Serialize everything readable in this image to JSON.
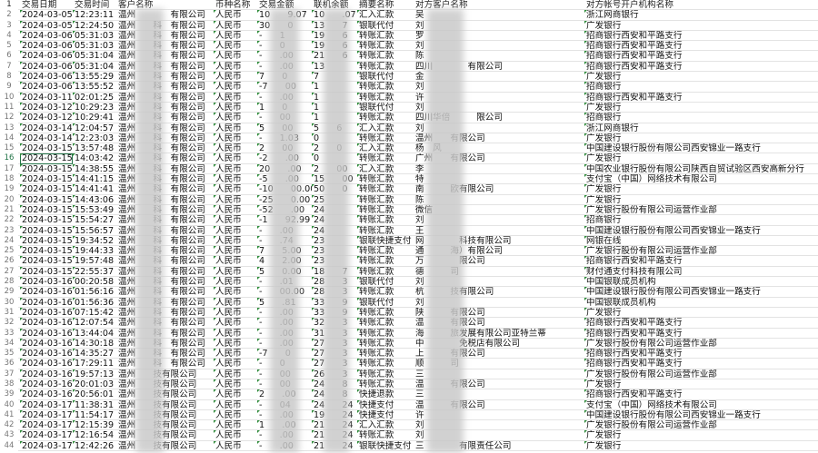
{
  "headers": [
    "交易日期",
    "交易时间",
    "客户名称",
    "币种名称",
    "交易金额",
    "联机余额",
    "摘要名称",
    "对方客户名称",
    "对方帐号开户机构名称"
  ],
  "header_row_number": "1",
  "selected_row": "16",
  "colors": {
    "grid": "#e3e3e3",
    "marker": "#2e8b3a",
    "selection": "#217346"
  },
  "rows": [
    [
      "2",
      "2024-03-05",
      "12:23:11",
      "温州　　　　有限公司",
      "人民币",
      "10　　9.07",
      "10　　.07",
      "汇入汇款",
      "吴",
      "浙江网商银行"
    ],
    [
      "3",
      "2024-03-05",
      "12:24:50",
      "温州　　科　有限公司",
      "人民币",
      "30　　0",
      "13　　7",
      "银联代付",
      "刘",
      "广发银行"
    ],
    [
      "4",
      "2024-03-06",
      "05:31:03",
      "温州　　科　有限公司",
      "人民币",
      "-　　1",
      "19　　6",
      "转账汇款",
      "罗",
      "招商银行西安和平路支行"
    ],
    [
      "5",
      "2024-03-06",
      "05:31:03",
      "温州　　科　有限公司",
      "人民币",
      "-　　0",
      "19　　6",
      "转账汇款",
      "刘",
      "招商银行西安和平路支行"
    ],
    [
      "6",
      "2024-03-06",
      "05:31:04",
      "温州　　科　有限公司",
      "人民币",
      "-　　.00",
      "21　　6",
      "转账汇款",
      "陈",
      "招商银行西安和平路支行"
    ],
    [
      "7",
      "2024-03-06",
      "05:31:04",
      "温州　　科　有限公司",
      "人民币",
      "-　　.00",
      "13",
      "转账汇款",
      "四川　　　　有限公司",
      "招商银行西安和平路支行"
    ],
    [
      "8",
      "2024-03-06",
      "13:55:29",
      "温州　　科　有限公司",
      "人民币",
      "7　　0",
      "7",
      "银联代付",
      "金",
      "广发银行"
    ],
    [
      "9",
      "2024-03-06",
      "13:55:52",
      "温州　　科　有限公司",
      "人民币",
      "-7　　00",
      "1",
      "转账汇款",
      "刘",
      "招商银行"
    ],
    [
      "10",
      "2024-03-11",
      "02:01:25",
      "温州　　科　有限公司",
      "人民币",
      "-　　.00",
      "1",
      "转账汇款",
      "许",
      "招商银行西安和平路支行"
    ],
    [
      "11",
      "2024-03-12",
      "10:29:23",
      "温州　　科　有限公司",
      "人民币",
      "1　　0",
      "1",
      "银联代付",
      "刘",
      "广发银行"
    ],
    [
      "12",
      "2024-03-12",
      "10:29:41",
      "温州　　科　有限公司",
      "人民币",
      "-　　00",
      "1",
      "转账汇款",
      "四川华倍　　　限公司",
      "招商银行"
    ],
    [
      "13",
      "2024-03-14",
      "12:04:57",
      "温州　　科　有限公司",
      "人民币",
      "5　　00",
      "5　　6",
      "汇入汇款",
      "刘",
      "浙江网商银行"
    ],
    [
      "14",
      "2024-03-14",
      "12:23:03",
      "温州　　科　有限公司",
      "人民币",
      "-　　1.03",
      "0",
      "转账汇款",
      "温州　　有限公司",
      "广发银行"
    ],
    [
      "15",
      "2024-03-15",
      "13:57:48",
      "温州　　科　有限公司",
      "人民币",
      "2　　00",
      "2　　0",
      "汇入汇款",
      "杨　风",
      "中国建设银行股份有限公司西安锦业一路支行"
    ],
    [
      "16",
      "2024-03-15",
      "14:03:42",
      "温州　　科　有限公司",
      "人民币",
      "-2　　.00",
      "0",
      "转账汇款",
      "广州　　有限公司",
      "广发银行"
    ],
    [
      "17",
      "2024-03-15",
      "14:38:55",
      "温州　　科　有限公司",
      "人民币",
      "20　　.00",
      "2　　00",
      "汇入汇款",
      "李",
      "中国农业银行股份有限公司陕西自贸试验区西安高新分行"
    ],
    [
      "18",
      "2024-03-15",
      "14:41:15",
      "温州　　科　有限公司",
      "人民币",
      "-5　　.00",
      "15　　00",
      "转账汇款",
      "特",
      "支付宝（中国）网络技术有限公司"
    ],
    [
      "19",
      "2024-03-15",
      "14:41:41",
      "温州　　科　有限公司",
      "人民币",
      "-10　　00.00",
      "50　　0",
      "转账汇款",
      "南　　　欧有限公司",
      "广发银行"
    ],
    [
      "20",
      "2024-03-15",
      "14:43:06",
      "温州　　科　有限公司",
      "人民币",
      "-25　　0.00",
      "25",
      "转账汇款",
      "陈",
      "广发银行"
    ],
    [
      "21",
      "2024-03-15",
      "15:53:49",
      "温州　　科　有限公司",
      "人民币",
      "-52　　.00",
      "24",
      "转账汇款",
      "微信",
      "广发银行股份有限公司运营作业部"
    ],
    [
      "22",
      "2024-03-15",
      "15:54:27",
      "温州　　科　有限公司",
      "人民币",
      "-1　　92.99",
      "24",
      "转账汇款",
      "刘",
      "招商银行"
    ],
    [
      "23",
      "2024-03-15",
      "15:56:57",
      "温州　　科　有限公司",
      "人民币",
      "-　　.00",
      "24",
      "转账汇款",
      "王",
      "中国建设银行股份有限公司西安锦业一路支行"
    ],
    [
      "24",
      "2024-03-15",
      "19:34:52",
      "温州　　科　有限公司",
      "人民币",
      "-　　.74",
      "23",
      "银联快捷支付",
      "网　　　　科技有限公司",
      "网银在线"
    ],
    [
      "25",
      "2024-03-15",
      "19:44:33",
      "温州　　科　有限公司",
      "人民币",
      "7　　5.00",
      "23",
      "转账汇款",
      "通　　　海）有限公司",
      "广发银行股份有限公司运营作业部"
    ],
    [
      "26",
      "2024-03-15",
      "19:57:48",
      "温州　　科　有限公司",
      "人民币",
      "4　　2.00",
      "23",
      "转账汇款",
      "万　　　　限公司",
      "招商银行西安和平路支行"
    ],
    [
      "27",
      "2024-03-15",
      "22:55:37",
      "温州　　科　有限公司",
      "人民币",
      "5　　0.00",
      "18　　7",
      "转账汇款",
      "德　　　司",
      "财付通支付科技有限公司"
    ],
    [
      "28",
      "2024-03-16",
      "00:20:58",
      "温州　　科　有限公司",
      "人民币",
      "-　　.01",
      "28　　3",
      "银联代付",
      "刘",
      "中国银联成员机构"
    ],
    [
      "29",
      "2024-03-16",
      "01:56:16",
      "温州　　科　有限公司",
      "人民币",
      "-　　00.00",
      "28　　3",
      "转账汇款",
      "杭　　　技有限公司",
      "中国建设银行股份有限公司西安锦业一路支行"
    ],
    [
      "30",
      "2024-03-16",
      "01:56:36",
      "温州　　科　有限公司",
      "人民币",
      "5　　.81",
      "33　　9",
      "银联代付",
      "刘",
      "中国银联成员机构"
    ],
    [
      "31",
      "2024-03-16",
      "07:15:42",
      "温州　　科　有限公司",
      "人民币",
      "-　　.00",
      "33　　9",
      "转账汇款",
      "陕　　　有限公司",
      "广发银行"
    ],
    [
      "32",
      "2024-03-16",
      "12:07:54",
      "温州　　科　有限公司",
      "人民币",
      "-　　.00",
      "32　　3",
      "转账汇款",
      "温　　　有限公司",
      "招商银行西安和平路支行"
    ],
    [
      "33",
      "2024-03-16",
      "13:44:04",
      "温州　　科　有限公司",
      "人民币",
      "-　　.00",
      "31　　3",
      "转账汇款",
      "海　　　旅发展有限公司亚特兰蒂",
      "招商银行西安和平路支行"
    ],
    [
      "34",
      "2024-03-16",
      "14:30:18",
      "温州　　科　有限公司",
      "人民币",
      "-　　.00",
      "27　　3",
      "转账汇款",
      "中　　　　免税店有限公司",
      "广发银行股份有限公司运营作业部"
    ],
    [
      "35",
      "2024-03-16",
      "14:35:27",
      "温州　　科　有限公司",
      "人民币",
      "-7　　0",
      "27　　3",
      "转账汇款",
      "上　　　有限公司",
      "招商银行西安和平路支行"
    ],
    [
      "36",
      "2024-03-16",
      "17:29:11",
      "温州　　科　有限公司",
      "人民币",
      "-　　0",
      "27　　3",
      "转账汇款",
      "顺　　　司",
      "招商银行西安和平路支行"
    ],
    [
      "37",
      "2024-03-16",
      "19:57:13",
      "温州　　技有限公司",
      "人民币",
      "-　　00",
      "26　　3",
      "转账汇款",
      "三",
      "广发银行股份有限公司运营作业部"
    ],
    [
      "38",
      "2024-03-16",
      "20:01:03",
      "温州　　技有限公司",
      "人民币",
      "-　　00",
      "24　　8",
      "转账汇款",
      "温　　　有限公司",
      "广发银行"
    ],
    [
      "39",
      "2024-03-16",
      "20:56:01",
      "温州　　技有限公司",
      "人民币",
      "2　　.00",
      "24　　8",
      "快捷退款",
      "三",
      "招商银行西安和平路支行"
    ],
    [
      "40",
      "2024-03-17",
      "11:38:31",
      "温州　　技有限公司",
      "人民币",
      "-　　04",
      "24　　24",
      "快捷支付",
      "温　　　有限公司",
      "支付宝（中国）网络技术有限公司"
    ],
    [
      "41",
      "2024-03-17",
      "11:54:17",
      "温州　　技有限公司",
      "人民币",
      "-　　.00",
      "19　　24",
      "快捷支付",
      "许",
      "中国建设银行股份有限公司西安锦业一路支行"
    ],
    [
      "42",
      "2024-03-17",
      "12:15:39",
      "温州　　技有限公司",
      "人民币",
      "1　　.00",
      "21　　24",
      "汇入汇款",
      "刘",
      "广发银行股份有限公司运营作业部"
    ],
    [
      "43",
      "2024-03-17",
      "12:16:54",
      "温州　　技有限公司",
      "人民币",
      "-　　.00",
      "21　　24",
      "转账汇款",
      "刘",
      "广发银行"
    ],
    [
      "44",
      "2024-03-17",
      "12:42:26",
      "温州　　技有限公司",
      "人民币",
      "-　　.00",
      "21　　24",
      "银联快捷支付",
      "三　　　　有限责任公司",
      "广发银行"
    ]
  ]
}
